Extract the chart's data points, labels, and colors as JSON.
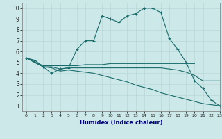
{
  "xlabel": "Humidex (Indice chaleur)",
  "background_color": "#cce8e8",
  "line_color": "#1a6b6b",
  "xlim": [
    -0.5,
    23
  ],
  "ylim": [
    0.5,
    10.5
  ],
  "xticks": [
    0,
    1,
    2,
    3,
    4,
    5,
    6,
    7,
    8,
    9,
    10,
    11,
    12,
    13,
    14,
    15,
    16,
    17,
    18,
    19,
    20,
    21,
    22,
    23
  ],
  "yticks": [
    1,
    2,
    3,
    4,
    5,
    6,
    7,
    8,
    9,
    10
  ],
  "curve1_x": [
    0,
    1,
    2,
    3,
    4,
    5,
    6,
    7,
    8,
    9,
    10,
    11,
    12,
    13,
    14,
    15,
    16,
    17,
    18,
    19,
    20,
    21,
    22,
    23
  ],
  "curve1_y": [
    5.4,
    5.2,
    4.6,
    4.0,
    4.4,
    4.5,
    6.2,
    7.0,
    7.0,
    9.3,
    9.0,
    8.7,
    9.3,
    9.5,
    10.0,
    10.0,
    9.6,
    7.2,
    6.2,
    5.0,
    3.3,
    2.6,
    1.5,
    1.0
  ],
  "curve2_x": [
    0,
    2,
    3,
    4,
    5,
    6,
    7,
    8,
    9,
    10,
    11,
    12,
    13,
    14,
    15,
    16,
    17,
    18,
    19,
    20
  ],
  "curve2_y": [
    5.4,
    4.7,
    4.7,
    4.7,
    4.7,
    4.7,
    4.8,
    4.8,
    4.8,
    4.9,
    4.9,
    4.9,
    4.9,
    4.9,
    4.9,
    4.9,
    4.9,
    4.9,
    4.9,
    4.9
  ],
  "curve3_x": [
    0,
    2,
    3,
    4,
    5,
    6,
    7,
    8,
    9,
    10,
    11,
    12,
    13,
    14,
    15,
    16,
    17,
    18,
    19,
    20,
    21,
    22,
    23
  ],
  "curve3_y": [
    5.4,
    4.6,
    4.6,
    4.4,
    4.5,
    4.5,
    4.5,
    4.5,
    4.5,
    4.5,
    4.5,
    4.5,
    4.5,
    4.5,
    4.5,
    4.5,
    4.4,
    4.3,
    4.1,
    3.8,
    3.3,
    3.3,
    3.3
  ],
  "curve4_x": [
    0,
    2,
    3,
    4,
    5,
    6,
    7,
    8,
    9,
    10,
    11,
    12,
    13,
    14,
    15,
    16,
    17,
    18,
    19,
    20,
    21,
    22,
    23
  ],
  "curve4_y": [
    5.4,
    4.6,
    4.5,
    4.2,
    4.3,
    4.2,
    4.1,
    4.0,
    3.8,
    3.6,
    3.4,
    3.2,
    2.9,
    2.7,
    2.5,
    2.2,
    2.0,
    1.8,
    1.6,
    1.4,
    1.2,
    1.1,
    1.0
  ]
}
